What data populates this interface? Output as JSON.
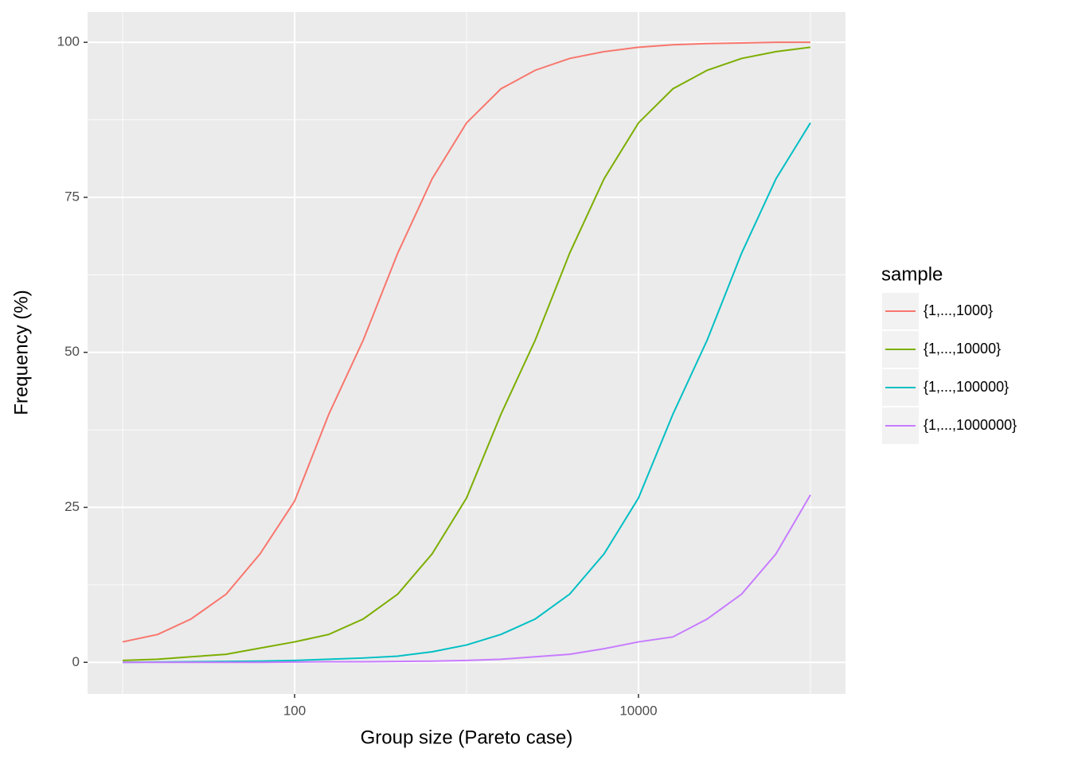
{
  "chart_data": {
    "type": "line",
    "xlabel": "Group size (Pareto case)",
    "ylabel": "Frequency (%)",
    "legend_title": "sample",
    "x": [
      10,
      16,
      25,
      40,
      63,
      100,
      158,
      251,
      398,
      631,
      1000,
      1585,
      2512,
      3981,
      6310,
      10000,
      15849,
      25119,
      39811,
      63096,
      100000
    ],
    "series": [
      {
        "name": "{1,...,1000}",
        "color": "#F8766D",
        "values": [
          3.3,
          4.5,
          7,
          11,
          17.5,
          26,
          40,
          52,
          66,
          78,
          87,
          92.5,
          95.5,
          97.4,
          98.5,
          99.2,
          99.6,
          99.8,
          99.9,
          100,
          100
        ]
      },
      {
        "name": "{1,...,10000}",
        "color": "#7CAE00",
        "values": [
          0.3,
          0.5,
          0.9,
          1.3,
          2.3,
          3.3,
          4.5,
          7,
          11,
          17.5,
          26.5,
          40,
          52,
          66,
          78,
          87,
          92.5,
          95.5,
          97.4,
          98.5,
          99.2
        ]
      },
      {
        "name": "{1,...,100000}",
        "color": "#00BFC4",
        "values": [
          0,
          0.05,
          0.1,
          0.15,
          0.2,
          0.3,
          0.5,
          0.7,
          1,
          1.7,
          2.8,
          4.5,
          7,
          11,
          17.5,
          26.5,
          40,
          52,
          66,
          78,
          87
        ]
      },
      {
        "name": "{1,...,1000000}",
        "color": "#C77CFF",
        "values": [
          0,
          0,
          0,
          0,
          0,
          0.05,
          0.1,
          0.1,
          0.15,
          0.2,
          0.3,
          0.5,
          0.9,
          1.3,
          2.2,
          3.3,
          4.1,
          7,
          11,
          17.5,
          27
        ]
      }
    ],
    "xscale": "log",
    "xlim": [
      6.25,
      160000
    ],
    "xticks": [
      100,
      10000
    ],
    "xminor": [
      10,
      1000,
      100000
    ],
    "ylim": [
      -5.1,
      104.9
    ],
    "yticks": [
      0,
      25,
      50,
      75,
      100
    ],
    "yminor": [
      12.5,
      37.5,
      62.5,
      87.5
    ],
    "grid": true,
    "legend": "right"
  }
}
